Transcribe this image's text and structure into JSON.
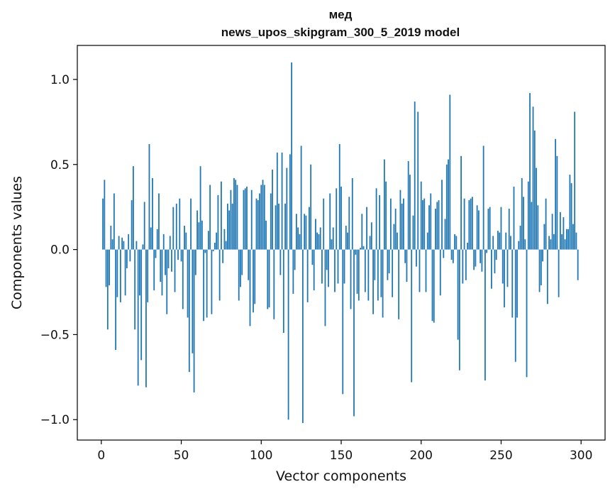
{
  "chart_data": {
    "type": "bar",
    "title": "мед",
    "subtitle": "news_upos_skipgram_300_5_2019 model",
    "xlabel": "Vector components",
    "ylabel": "Components values",
    "xlim": [
      -15,
      315
    ],
    "ylim": [
      -1.12,
      1.2
    ],
    "xticks": [
      0,
      50,
      100,
      150,
      200,
      250,
      300
    ],
    "xtick_labels": [
      "0",
      "50",
      "100",
      "150",
      "200",
      "250",
      "300"
    ],
    "yticks": [
      -1.0,
      -0.5,
      0.0,
      0.5,
      1.0
    ],
    "ytick_labels": [
      "−1.0",
      "−0.5",
      "0.0",
      "0.5",
      "1.0"
    ],
    "grid": false,
    "legend": "none",
    "bar_color": "#1f77b4",
    "x_start": 1,
    "values": [
      0.3,
      0.41,
      -0.22,
      -0.47,
      -0.21,
      0.14,
      0.06,
      0.33,
      -0.59,
      -0.28,
      0.08,
      -0.31,
      0.07,
      0.05,
      -0.27,
      -0.11,
      0.09,
      -0.07,
      0.29,
      0.49,
      -0.47,
      0.05,
      -0.8,
      -0.27,
      -0.65,
      0.03,
      0.28,
      -0.81,
      -0.31,
      0.62,
      0.13,
      0.42,
      -0.24,
      -0.05,
      0.12,
      0.33,
      -0.19,
      -0.27,
      0.09,
      -0.15,
      -0.38,
      -0.11,
      0.08,
      -0.13,
      0.25,
      -0.25,
      0.27,
      -0.06,
      0.3,
      -0.07,
      -0.35,
      0.14,
      0.1,
      -0.4,
      -0.72,
      0.3,
      -0.61,
      -0.84,
      -0.15,
      0.23,
      0.16,
      0.49,
      0.17,
      -0.42,
      -0.02,
      -0.4,
      0.11,
      0.38,
      -0.38,
      -0.01,
      0.04,
      0.1,
      0.32,
      -0.3,
      0.4,
      -0.08,
      0.12,
      0.05,
      0.27,
      0.23,
      0.35,
      0.27,
      0.42,
      0.41,
      0.38,
      -0.3,
      -0.22,
      -0.15,
      0.35,
      0.36,
      0.37,
      -0.18,
      -0.45,
      0.35,
      -0.37,
      -0.32,
      0.3,
      0.29,
      0.33,
      0.38,
      0.41,
      0.38,
      0.17,
      -0.35,
      -0.34,
      0.33,
      0.47,
      -0.41,
      0.26,
      0.57,
      0.27,
      -0.15,
      0.57,
      -0.49,
      0.27,
      0.48,
      -1.0,
      0.56,
      1.1,
      -0.26,
      -0.12,
      0.21,
      0.13,
      0.09,
      0.61,
      -1.02,
      0.21,
      0.2,
      -0.31,
      0.25,
      0.5,
      -0.09,
      -0.24,
      0.18,
      0.1,
      0.09,
      0.13,
      -0.2,
      0.3,
      -0.45,
      -0.12,
      -0.22,
      0.33,
      0.06,
      0.13,
      -0.25,
      0.36,
      -0.2,
      0.62,
      0.37,
      -0.85,
      -0.2,
      0.14,
      0.1,
      0.31,
      -0.35,
      0.42,
      -0.98,
      -0.03,
      -0.26,
      -0.3,
      0.01,
      0.21,
      0.02,
      -0.25,
      0.25,
      -0.3,
      0.08,
      0.16,
      -0.38,
      -0.18,
      0.36,
      -0.3,
      0.32,
      -0.28,
      -0.4,
      0.53,
      0.4,
      -0.18,
      -0.14,
      0.3,
      -0.28,
      0.15,
      0.24,
      0.1,
      -0.41,
      0.35,
      0.27,
      0.3,
      -0.08,
      -0.19,
      0.52,
      0.44,
      -0.78,
      0.2,
      0.87,
      -0.1,
      0.81,
      -0.25,
      0.4,
      0.29,
      0.3,
      -0.25,
      0.1,
      0.26,
      0.33,
      -0.42,
      -0.43,
      0.24,
      0.28,
      0.29,
      -0.27,
      0.41,
      -0.05,
      0.18,
      0.5,
      0.53,
      0.91,
      -0.06,
      -0.08,
      0.09,
      0.08,
      -0.53,
      -0.71,
      0.55,
      -0.2,
      0.3,
      -0.18,
      0.04,
      0.29,
      0.3,
      0.31,
      -0.12,
      -0.1,
      0.26,
      0.23,
      -0.08,
      -0.13,
      0.61,
      -0.77,
      -0.02,
      0.24,
      0.25,
      -0.23,
      0.08,
      -0.14,
      -0.06,
      0.11,
      0.1,
      0.25,
      -0.2,
      -0.34,
      0.1,
      -0.22,
      0.24,
      0.08,
      -0.4,
      0.37,
      -0.66,
      -0.4,
      0.05,
      0.14,
      0.42,
      0.31,
      0.06,
      -0.75,
      0.4,
      0.92,
      0.28,
      0.84,
      0.7,
      0.48,
      0.26,
      -0.25,
      -0.21,
      -0.07,
      0.15,
      0.3,
      -0.32,
      0.08,
      0.06,
      0.21,
      0.09,
      0.65,
      0.55,
      -0.28,
      0.22,
      0.09,
      0.19,
      0.06,
      0.12,
      0.12,
      0.44,
      0.39,
      0.15,
      0.81,
      0.1,
      -0.18
    ]
  }
}
